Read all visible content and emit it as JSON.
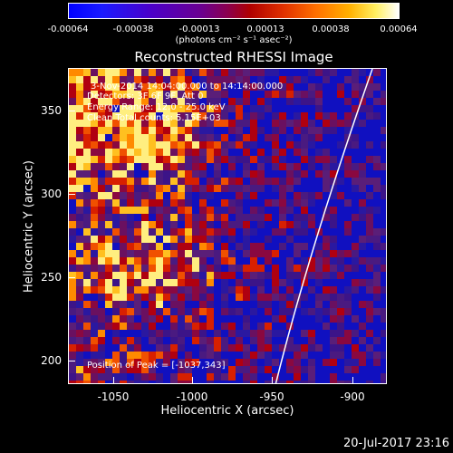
{
  "colorbar": {
    "ticks": [
      "-0.00064",
      "-0.00038",
      "-0.00013",
      "0.00013",
      "0.00038",
      "0.00064"
    ],
    "units": "(photons cm⁻² s⁻¹ asec⁻²)"
  },
  "title": "Reconstructed RHESSI Image",
  "info": {
    "time": "3-Nov-2014 14:04:00.000 to 14:14:00.000",
    "detectors": "Detectors: 3F 6F 9F, Att 0",
    "energy": "Energy Range: 12.0 - 25.0 keV",
    "clean": "Clean    Total counts: 5.15E+03",
    "peak": "Position of Peak = [-1037,343]"
  },
  "axes": {
    "xlabel": "Heliocentric X (arcsec)",
    "ylabel": "Heliocentric Y (arcsec)",
    "xticks": [
      "-1050",
      "-1000",
      "-950",
      "-900"
    ],
    "yticks": [
      "350",
      "300",
      "250",
      "200"
    ]
  },
  "timestamp": "20-Jul-2017 23:16",
  "colors": {
    "background": "#000000",
    "frame": "#ffffff",
    "limb": "#ffffff"
  }
}
